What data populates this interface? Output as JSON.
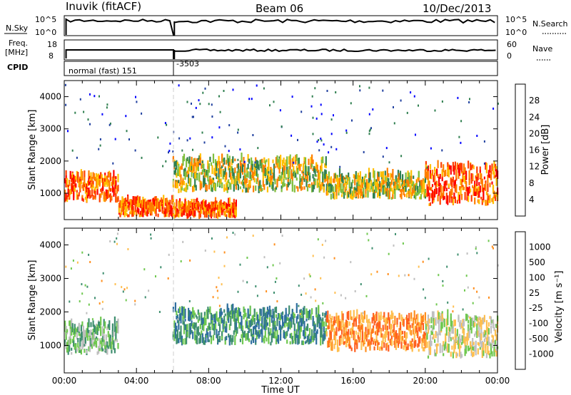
{
  "header": {
    "station": "Inuvik (fitACF)",
    "beam": "Beam 06",
    "date": "10/Dec/2013"
  },
  "top_panels": {
    "nsky_label": "N.Sky",
    "nsearch_label": "N.Search",
    "nsky_ticks": [
      "10^5",
      "10^0"
    ],
    "nsearch_ticks": [
      "10^5",
      "10^0"
    ],
    "freq_label_line1": "Freq.",
    "freq_label_line2": "[MHz]",
    "freq_ticks": [
      "18",
      "8"
    ],
    "nave_label": "Nave",
    "nave_ticks": [
      "60",
      "0"
    ],
    "cpid_label": "CPID",
    "cpid_mode_1": "normal (fast) 151",
    "cpid_mode_2": "-3503"
  },
  "colors": {
    "power_scale": [
      "#0000ff",
      "#1f3f9f",
      "#2f7f4f",
      "#7fbf3f",
      "#ffbf00",
      "#ff7f00",
      "#ff3f00",
      "#ff0000"
    ],
    "velocity_scale": [
      "#1f3fbf",
      "#2f6f9f",
      "#3f8f6f",
      "#6fc84f",
      "#bfbfbf",
      "#ffbf4f",
      "#ff8f1f",
      "#ff5f1f",
      "#ff0000"
    ]
  },
  "chart_data": [
    {
      "type": "heatmap",
      "panel": "power",
      "ylabel": "Slant Range [km]",
      "xlabel": "Time UT",
      "x_ticks": [
        "00:00",
        "04:00",
        "08:00",
        "12:00",
        "16:00",
        "20:00",
        "00:00"
      ],
      "xlim_hours": [
        0,
        24
      ],
      "y_ticks": [
        1000,
        2000,
        3000,
        4000
      ],
      "ylim": [
        180,
        4500
      ],
      "colorbar": {
        "label": "Power [dB]",
        "ticks": [
          "28",
          "24",
          "20",
          "16",
          "12",
          "8",
          "4"
        ],
        "range": [
          0,
          32
        ]
      },
      "echo_regions": [
        {
          "t": [
            0.0,
            3.0
          ],
          "range": [
            700,
            1500
          ],
          "level": "high"
        },
        {
          "t": [
            3.0,
            6.0
          ],
          "range": [
            250,
            700
          ],
          "level": "high"
        },
        {
          "t": [
            6.0,
            9.5
          ],
          "range": [
            200,
            600
          ],
          "level": "high"
        },
        {
          "t": [
            6.0,
            14.5
          ],
          "range": [
            1000,
            2000
          ],
          "level": "medium"
        },
        {
          "t": [
            14.5,
            20.0
          ],
          "range": [
            800,
            1500
          ],
          "level": "medium"
        },
        {
          "t": [
            20.0,
            24.0
          ],
          "range": [
            600,
            1800
          ],
          "level": "high"
        }
      ]
    },
    {
      "type": "heatmap",
      "panel": "velocity",
      "ylabel": "Slant Range [km]",
      "xlabel": "Time UT",
      "x_ticks": [
        "00:00",
        "04:00",
        "08:00",
        "12:00",
        "16:00",
        "20:00",
        "00:00"
      ],
      "xlim_hours": [
        0,
        24
      ],
      "y_ticks": [
        1000,
        2000,
        3000,
        4000
      ],
      "ylim": [
        180,
        4500
      ],
      "colorbar": {
        "label": "Velocity [m s⁻¹]",
        "ticks": [
          "1000",
          "500",
          "100",
          "25",
          "-25",
          "-100",
          "-500",
          "-1000"
        ]
      },
      "echo_regions": [
        {
          "t": [
            0.0,
            3.0
          ],
          "range": [
            700,
            1600
          ],
          "velocity": "low positive"
        },
        {
          "t": [
            6.0,
            14.5
          ],
          "range": [
            1000,
            2000
          ],
          "velocity": "positive"
        },
        {
          "t": [
            14.5,
            20.0
          ],
          "range": [
            800,
            1800
          ],
          "velocity": "negative"
        },
        {
          "t": [
            20.0,
            24.0
          ],
          "range": [
            600,
            1800
          ],
          "velocity": "mixed"
        }
      ]
    }
  ]
}
